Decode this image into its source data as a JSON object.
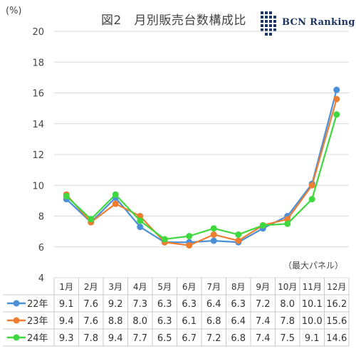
{
  "chart_data": {
    "type": "line",
    "title": "図2　月別販売台数構成比",
    "ylabel": "(%)",
    "note": "（最大パネル）",
    "logo_text": "BCN Ranking",
    "categories": [
      "1月",
      "2月",
      "3月",
      "4月",
      "5月",
      "6月",
      "7月",
      "8月",
      "9月",
      "10月",
      "11月",
      "12月"
    ],
    "ylim": [
      4,
      20
    ],
    "yticks": [
      4,
      6,
      8,
      10,
      12,
      14,
      16,
      18,
      20
    ],
    "grid": true,
    "legend": "table-below",
    "series": [
      {
        "name": "22年",
        "color": "#4a90d9",
        "values": [
          9.1,
          7.6,
          9.2,
          7.3,
          6.3,
          6.3,
          6.4,
          6.3,
          7.2,
          8.0,
          10.1,
          16.2
        ]
      },
      {
        "name": "23年",
        "color": "#ed7d31",
        "values": [
          9.4,
          7.6,
          8.8,
          8.0,
          6.3,
          6.1,
          6.8,
          6.4,
          7.4,
          7.8,
          10.0,
          15.6
        ]
      },
      {
        "name": "24年",
        "color": "#3fd83f",
        "values": [
          9.3,
          7.8,
          9.4,
          7.7,
          6.5,
          6.7,
          7.2,
          6.8,
          7.4,
          7.5,
          9.1,
          14.6
        ]
      }
    ]
  }
}
